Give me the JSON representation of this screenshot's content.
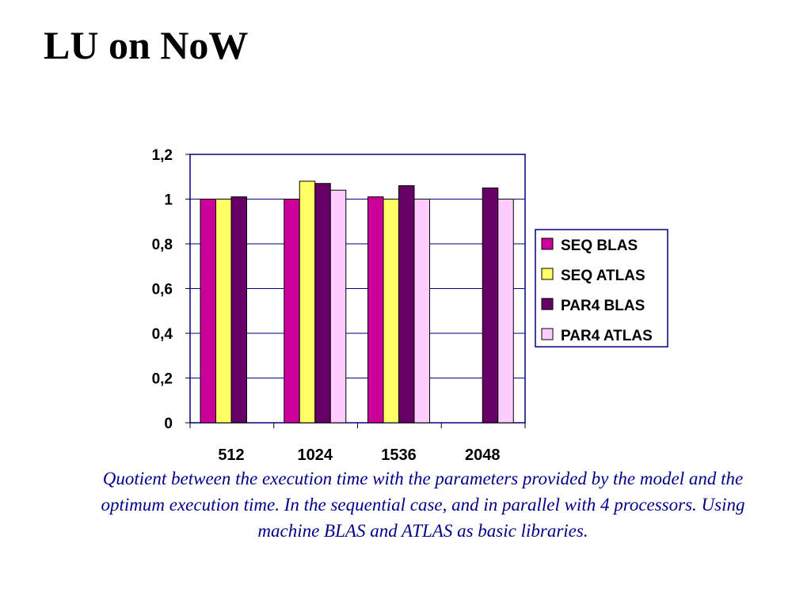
{
  "slide": {
    "title": "LU on NoW",
    "caption": "Quotient between the execution time with the parameters provided by the model and the optimum execution time. In the sequential case, and in parallel with 4 processors. Using machine BLAS and ATLAS as basic libraries."
  },
  "chart_data": {
    "type": "bar",
    "categories": [
      "512",
      "1024",
      "1536",
      "2048"
    ],
    "series": [
      {
        "name": "SEQ BLAS",
        "color": "#CC0099",
        "values": [
          1.0,
          1.0,
          1.01,
          null
        ]
      },
      {
        "name": "SEQ ATLAS",
        "color": "#FFFF66",
        "values": [
          1.0,
          1.08,
          1.0,
          null
        ]
      },
      {
        "name": "PAR4 BLAS",
        "color": "#660066",
        "values": [
          1.01,
          1.07,
          1.06,
          1.05
        ]
      },
      {
        "name": "PAR4 ATLAS",
        "color": "#FFCCFF",
        "values": [
          null,
          1.04,
          1.0,
          1.0
        ]
      }
    ],
    "ylim": [
      0,
      1.2
    ],
    "yticks": [
      "0",
      "0,2",
      "0,4",
      "0,6",
      "0,8",
      "1",
      "1,2"
    ],
    "grid": true,
    "legend_position": "right",
    "axis_color": "#000080"
  }
}
